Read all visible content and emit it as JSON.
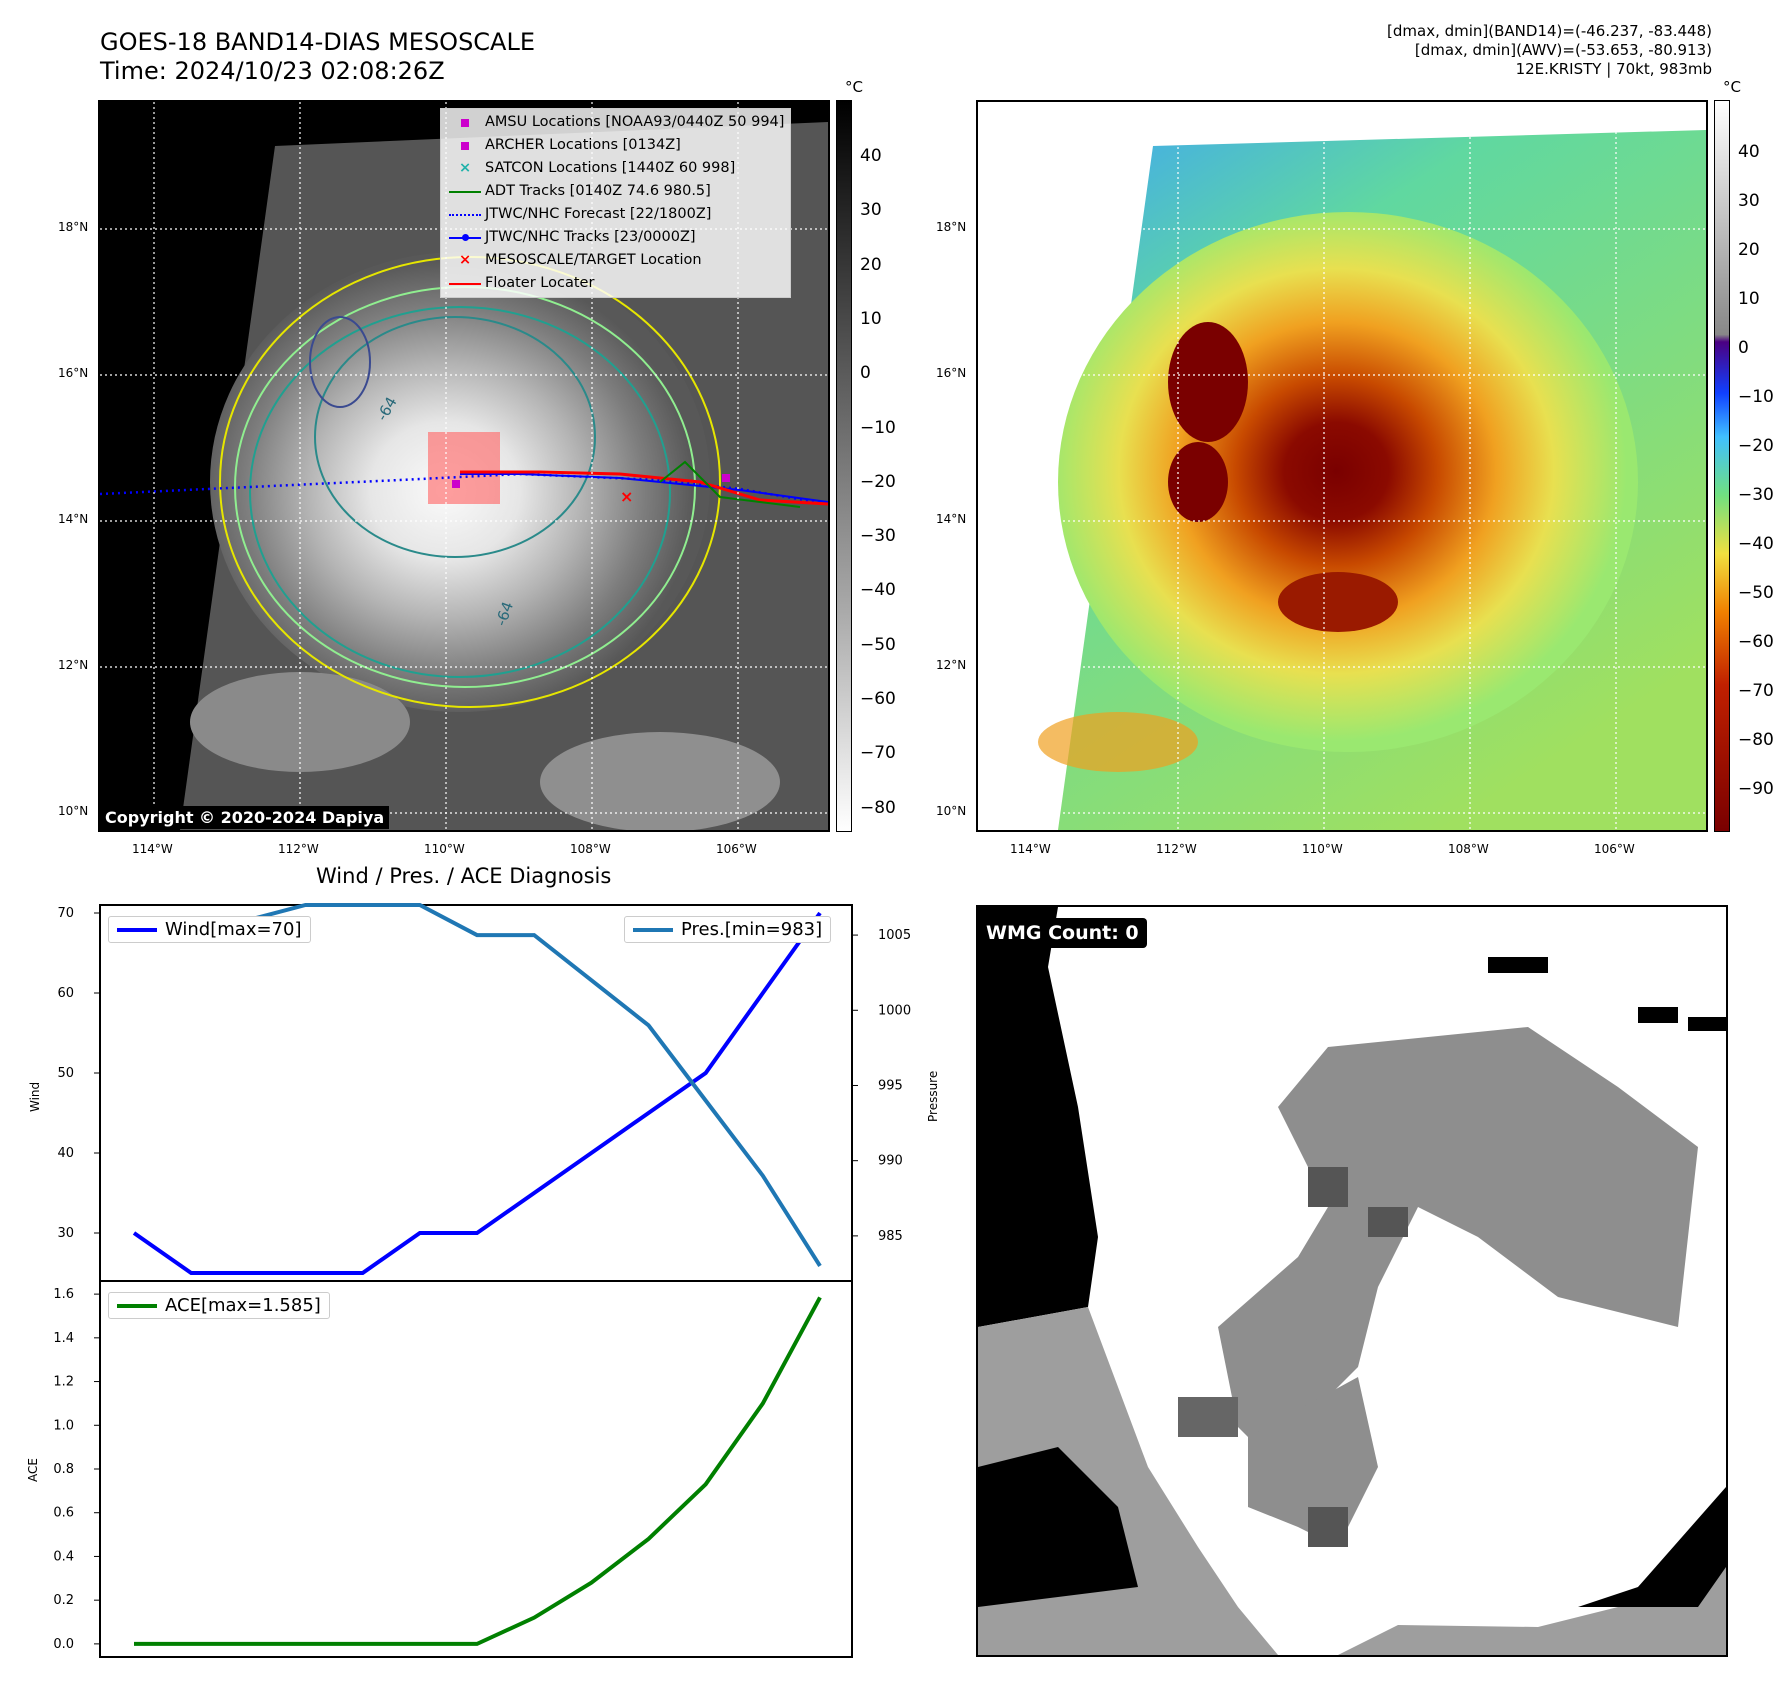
{
  "header": {
    "title_line1": "GOES-18 BAND14-DIAS MESOSCALE",
    "title_line2": "Time: 2024/10/23 02:08:26Z",
    "stats_line1": "[dmax, dmin](BAND14)=(-46.237, -83.448)",
    "stats_line2": "[dmax, dmin](AWV)=(-53.653, -80.913)",
    "stats_line3": "12E.KRISTY | 70kt, 983mb"
  },
  "map": {
    "lat_labels": [
      "18°N",
      "16°N",
      "14°N",
      "12°N",
      "10°N"
    ],
    "lon_labels": [
      "114°W",
      "112°W",
      "110°W",
      "108°W",
      "106°W"
    ],
    "contour_labels": [
      "-64",
      "-64"
    ],
    "copyright": "Copyright © 2020-2024 Dapiya"
  },
  "colorbar_left": {
    "unit": "°C",
    "ticks": [
      "40",
      "30",
      "20",
      "10",
      "0",
      "−10",
      "−20",
      "−30",
      "−40",
      "−50",
      "−60",
      "−70",
      "−80"
    ]
  },
  "colorbar_right": {
    "unit": "°C",
    "ticks": [
      "40",
      "30",
      "20",
      "10",
      "0",
      "−10",
      "−20",
      "−30",
      "−40",
      "−50",
      "−60",
      "−70",
      "−80",
      "−90"
    ]
  },
  "legend": {
    "items": [
      {
        "label": "AMSU Locations [NOAA93/0440Z 50 994]",
        "color": "#cc00cc",
        "sym": "square"
      },
      {
        "label": "ARCHER Locations [0134Z]",
        "color": "#cc00cc",
        "sym": "square"
      },
      {
        "label": "SATCON Locations [1440Z 60 998]",
        "color": "#20b2aa",
        "sym": "x"
      },
      {
        "label": "ADT Tracks [0140Z 74.6 980.5]",
        "color": "#008000",
        "sym": "line"
      },
      {
        "label": "JTWC/NHC Forecast [22/1800Z]",
        "color": "#0000ff",
        "sym": "dotted"
      },
      {
        "label": "JTWC/NHC Tracks [23/0000Z]",
        "color": "#0000ff",
        "sym": "linedot"
      },
      {
        "label": "MESOSCALE/TARGET Location",
        "color": "#ff0000",
        "sym": "x"
      },
      {
        "label": "Floater Locater",
        "color": "#ff0000",
        "sym": "line"
      }
    ]
  },
  "wmg": {
    "label": "WMG Count: 0"
  },
  "chart_data": [
    {
      "type": "line",
      "title": "Wind / Pres. / ACE Diagnosis",
      "ylabel": "Wind",
      "ylabel2": "Pressure",
      "x": [
        0,
        1,
        2,
        3,
        4,
        5,
        6,
        7,
        8,
        9,
        10,
        11,
        12
      ],
      "ylim": [
        24,
        71
      ],
      "y2lim": [
        982,
        1007
      ],
      "yticks": [
        "70",
        "60",
        "50",
        "40",
        "30"
      ],
      "y2ticks": [
        "1005",
        "1000",
        "995",
        "990",
        "985"
      ],
      "series": [
        {
          "name": "Wind[max=70]",
          "color": "#0000ff",
          "axis": "left",
          "values": [
            30,
            25,
            25,
            25,
            25,
            30,
            30,
            35,
            40,
            45,
            50,
            60,
            70
          ]
        },
        {
          "name": "Pres.[min=983]",
          "color": "#1f77b4",
          "axis": "right",
          "values": [
            1006,
            1006,
            1006,
            1007,
            1007,
            1007,
            1005,
            1005,
            1002,
            999,
            994,
            989,
            983
          ]
        }
      ]
    },
    {
      "type": "line",
      "ylabel": "ACE",
      "x": [
        0,
        1,
        2,
        3,
        4,
        5,
        6,
        7,
        8,
        9,
        10,
        11,
        12
      ],
      "ylim": [
        -0.06,
        1.66
      ],
      "yticks": [
        "1.6",
        "1.4",
        "1.2",
        "1.0",
        "0.8",
        "0.6",
        "0.4",
        "0.2",
        "0.0"
      ],
      "series": [
        {
          "name": "ACE[max=1.585]",
          "color": "#008000",
          "values": [
            0,
            0,
            0,
            0,
            0,
            0,
            0,
            0.12,
            0.28,
            0.48,
            0.73,
            1.1,
            1.585
          ]
        }
      ]
    }
  ]
}
